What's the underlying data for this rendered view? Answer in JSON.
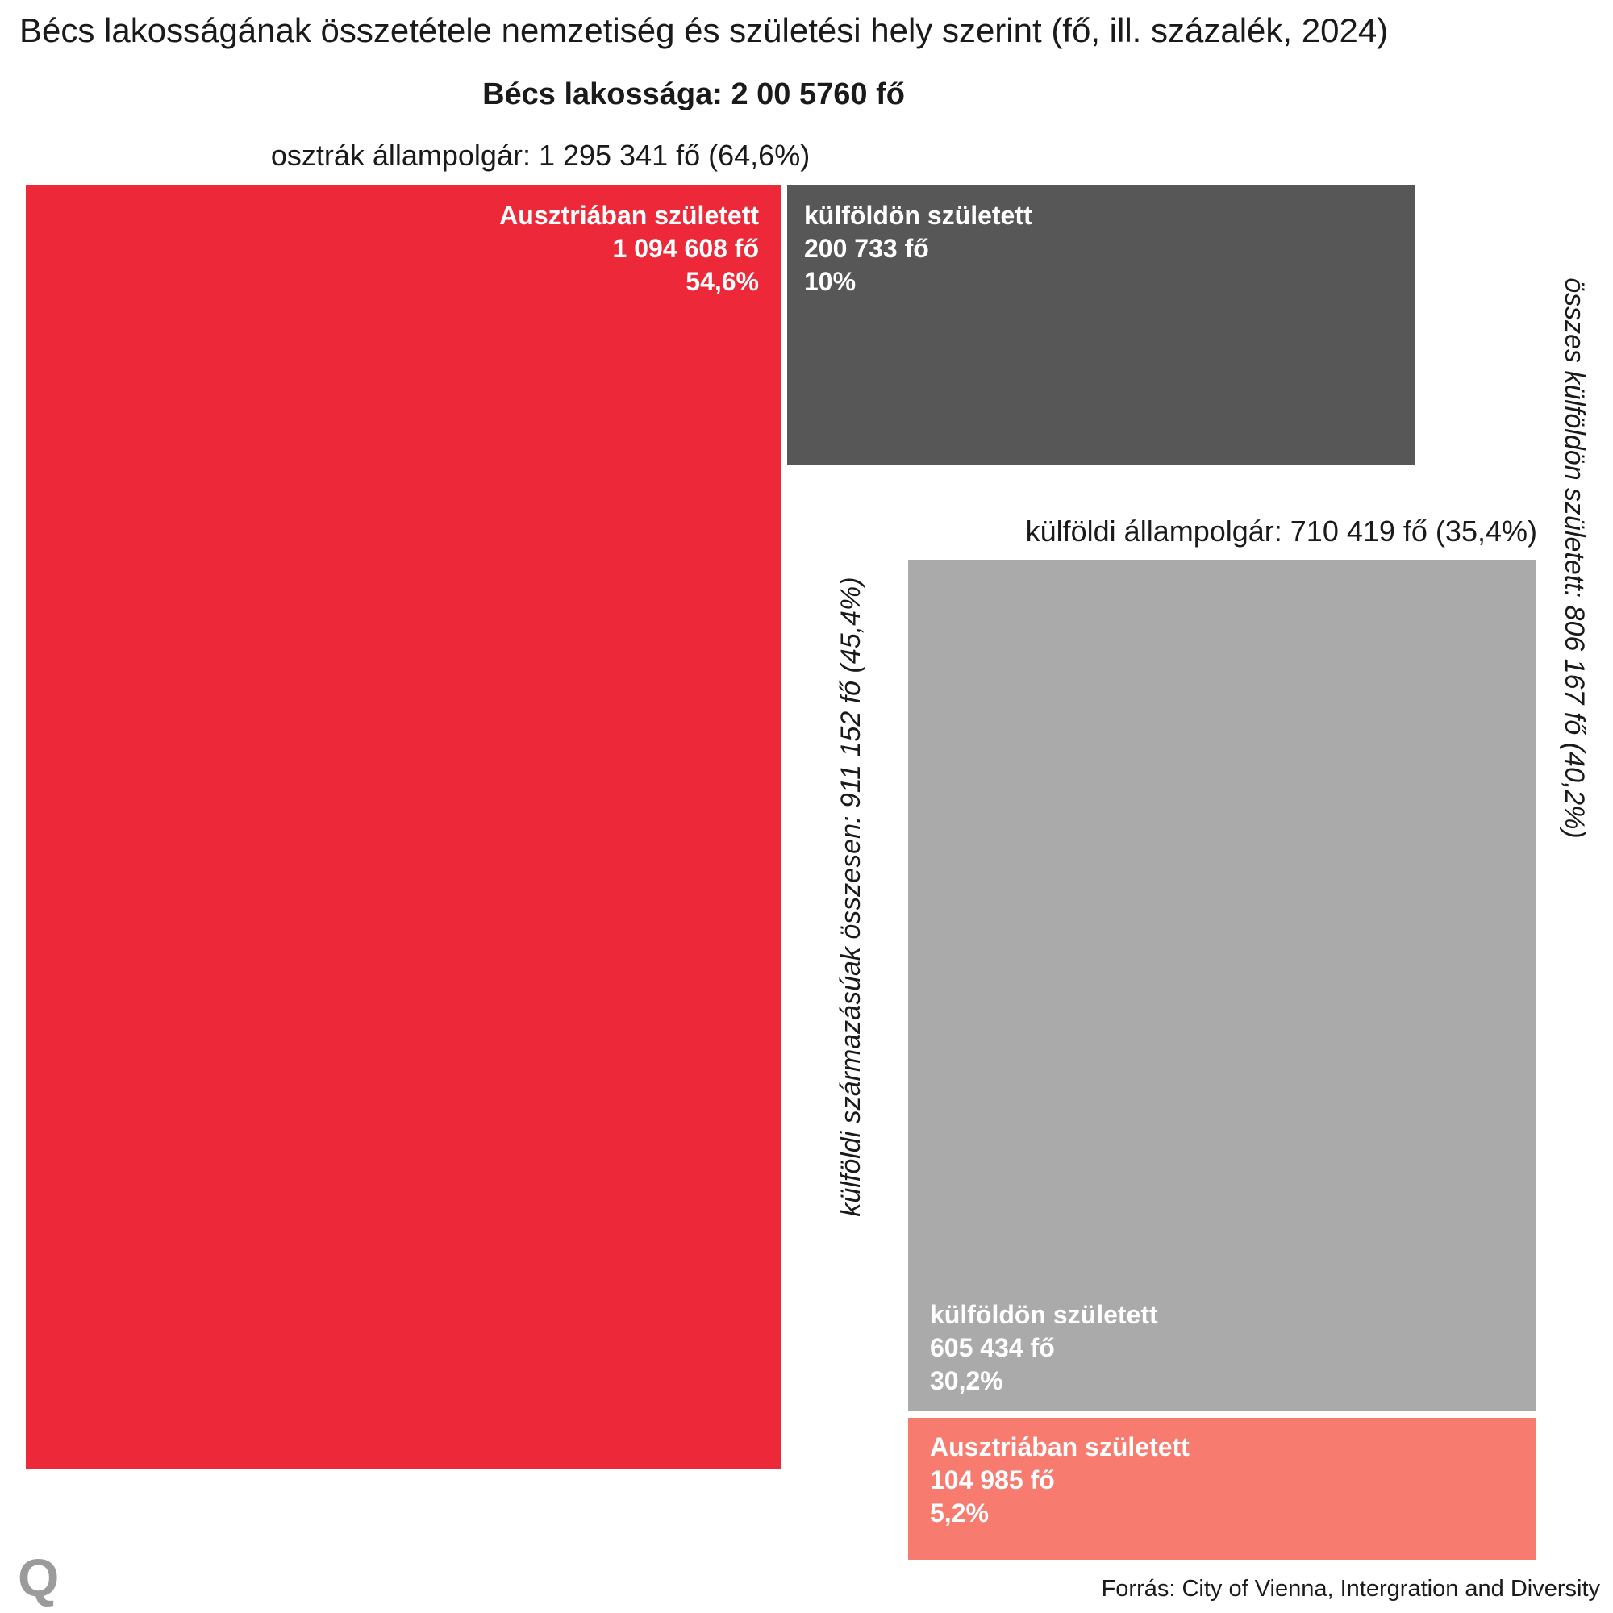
{
  "title": "Bécs lakosságának összetétele nemzetiség és születési hely szerint (fő, ill. százalék, 2024)",
  "population_label": "Bécs lakossága:  2 00 5760 fő",
  "source": "Forrás:  City of Vienna, Intergration and Diversity",
  "logo": "Q",
  "colors": {
    "austrian_born_austrian": "#ed2939",
    "foreign_born_austrian": "#575757",
    "foreign_born_foreign": "#aaaaaa",
    "austrian_born_foreign": "#f87b70"
  },
  "chart_data": {
    "type": "treemap",
    "title": "Bécs lakosságának összetétele nemzetiség és születési hely szerint (fő, ill. százalék, 2024)",
    "total_label": "Bécs lakossága:  2 00 5760 fő",
    "groups": [
      {
        "label": "osztrák állampolgár: 1 295 341 fő (64,6%)",
        "value": 1295341,
        "percent": 64.6,
        "tiles": [
          {
            "line1": "Ausztriában született",
            "line2": "1 094 608 fő",
            "line3": "54,6%",
            "value": 1094608,
            "percent": 54.6,
            "color": "#ed2939"
          },
          {
            "line1": "külföldön született",
            "line2": "200 733 fő",
            "line3": "10%",
            "value": 200733,
            "percent": 10,
            "color": "#575757"
          }
        ]
      },
      {
        "label": "külföldi állampolgár: 710 419 fő (35,4%)",
        "value": 710419,
        "percent": 35.4,
        "tiles": [
          {
            "line1": "külföldön született",
            "line2": "605 434 fő",
            "line3": "30,2%",
            "value": 605434,
            "percent": 30.2,
            "color": "#aaaaaa"
          },
          {
            "line1": "Ausztriában született",
            "line2": "104 985 fő",
            "line3": "5,2%",
            "value": 104985,
            "percent": 5.2,
            "color": "#f87b70"
          }
        ]
      }
    ],
    "annotations": [
      "külföldi származásúak összesen: 911 152 fő (45,4%)",
      "összes külföldön született: 806 167 fő (40,2%)"
    ]
  }
}
